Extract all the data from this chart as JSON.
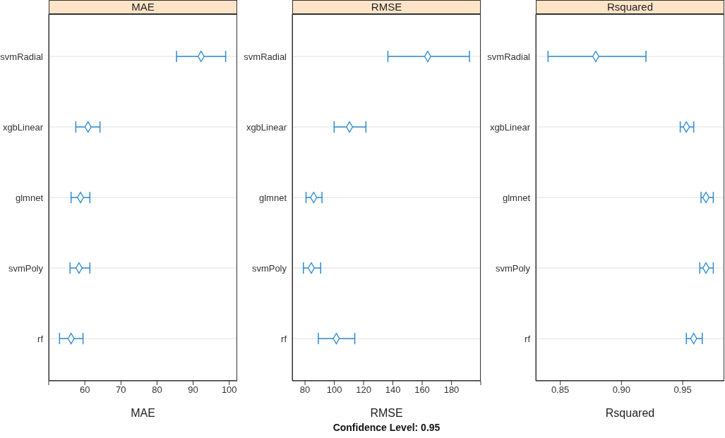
{
  "chart_data": [
    {
      "type": "scatter",
      "title": "MAE",
      "xlabel": "MAE",
      "orientation": "horizontal",
      "categories": [
        "svmRadial",
        "xgbLinear",
        "glmnet",
        "svmPoly",
        "rf"
      ],
      "series": [
        {
          "color": "#2e8bd0",
          "values": [
            92.2,
            60.9,
            58.8,
            58.4,
            56.2
          ],
          "errors": [
            [
              85.4,
              99.0
            ],
            [
              57.5,
              64.2
            ],
            [
              56.2,
              61.4
            ],
            [
              55.9,
              61.4
            ],
            [
              53.0,
              59.5
            ]
          ]
        }
      ],
      "xlim": [
        50,
        102.2
      ],
      "xticks": [
        {
          "value": 50,
          "label": null
        },
        60,
        70,
        80,
        90,
        100
      ],
      "grid": "y",
      "marker": "diamond"
    },
    {
      "type": "scatter",
      "title": "RMSE",
      "xlabel": "RMSE",
      "annotations": [
        "Confidence Level: 0.95"
      ],
      "orientation": "horizontal",
      "categories": [
        "svmRadial",
        "xgbLinear",
        "glmnet",
        "svmPoly",
        "rf"
      ],
      "series": [
        {
          "color": "#2e8bd0",
          "values": [
            163.8,
            110.4,
            85.9,
            84.3,
            101.4
          ],
          "errors": [
            [
              136.6,
              192.3
            ],
            [
              99.9,
              121.6
            ],
            [
              80.7,
              91.6
            ],
            [
              78.9,
              90.7
            ],
            [
              89.1,
              114.0
            ]
          ]
        }
      ],
      "xlim": [
        71.3,
        200
      ],
      "xticks": [
        80,
        100,
        120,
        140,
        160,
        180,
        {
          "value": 200,
          "label": null
        }
      ],
      "grid": "y",
      "marker": "diamond"
    },
    {
      "type": "scatter",
      "title": "Rsquared",
      "xlabel": "Rsquared",
      "orientation": "horizontal",
      "categories": [
        "svmRadial",
        "xgbLinear",
        "glmnet",
        "svmPoly",
        "rf"
      ],
      "series": [
        {
          "color": "#2e8bd0",
          "values": [
            0.879,
            0.953,
            0.969,
            0.969,
            0.959
          ],
          "errors": [
            [
              0.84,
              0.92
            ],
            [
              0.948,
              0.959
            ],
            [
              0.965,
              0.975
            ],
            [
              0.964,
              0.975
            ],
            [
              0.953,
              0.966
            ]
          ]
        }
      ],
      "xlim": [
        0.83,
        0.984
      ],
      "xticks": [
        0.85,
        {
          "value": 0.9,
          "label": "0.90"
        },
        0.95
      ],
      "grid": "y",
      "marker": "diamond"
    }
  ]
}
